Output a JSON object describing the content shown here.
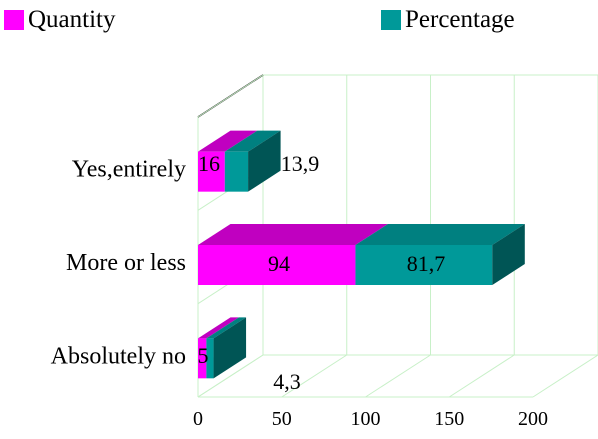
{
  "chart_data": {
    "type": "bar",
    "orientation": "horizontal",
    "stacked": true,
    "three_d": true,
    "categories": [
      "Yes,entirely",
      "More or less",
      "Absolutely no"
    ],
    "series": [
      {
        "name": "Quantity",
        "values": [
          16,
          94,
          5
        ],
        "labels": [
          "16",
          "94",
          "5"
        ]
      },
      {
        "name": "Percentage",
        "values": [
          13.9,
          81.7,
          4.3
        ],
        "labels": [
          "13,9",
          "81,7",
          "4,3"
        ]
      }
    ],
    "xlim": [
      0,
      200
    ],
    "xticks": [
      "0",
      "50",
      "100",
      "150",
      "200"
    ],
    "grid": true,
    "legend_position": "top",
    "colors": {
      "Quantity": "#ff00ff",
      "Quantity_top": "#c000c0",
      "Percentage": "#009999",
      "Percentage_top": "#008080",
      "Percentage_side": "#005555",
      "grid": "#c8f0c8"
    }
  }
}
